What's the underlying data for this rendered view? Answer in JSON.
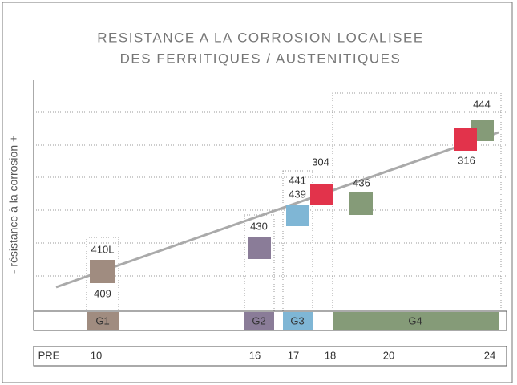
{
  "title": [
    "RESISTANCE A LA CORROSION LOCALISEE",
    "DES FERRITIQUES / AUSTENITIQUES"
  ],
  "y_axis_label": "- résistance à la corrosion +",
  "grades": [
    "410L",
    "409",
    "430",
    "441",
    "439",
    "304",
    "436",
    "316",
    "444"
  ],
  "groups": [
    "G1",
    "G2",
    "G3",
    "G4"
  ],
  "pre": {
    "label": "PRE",
    "values": [
      10,
      16,
      17,
      18,
      20,
      24
    ]
  }
}
